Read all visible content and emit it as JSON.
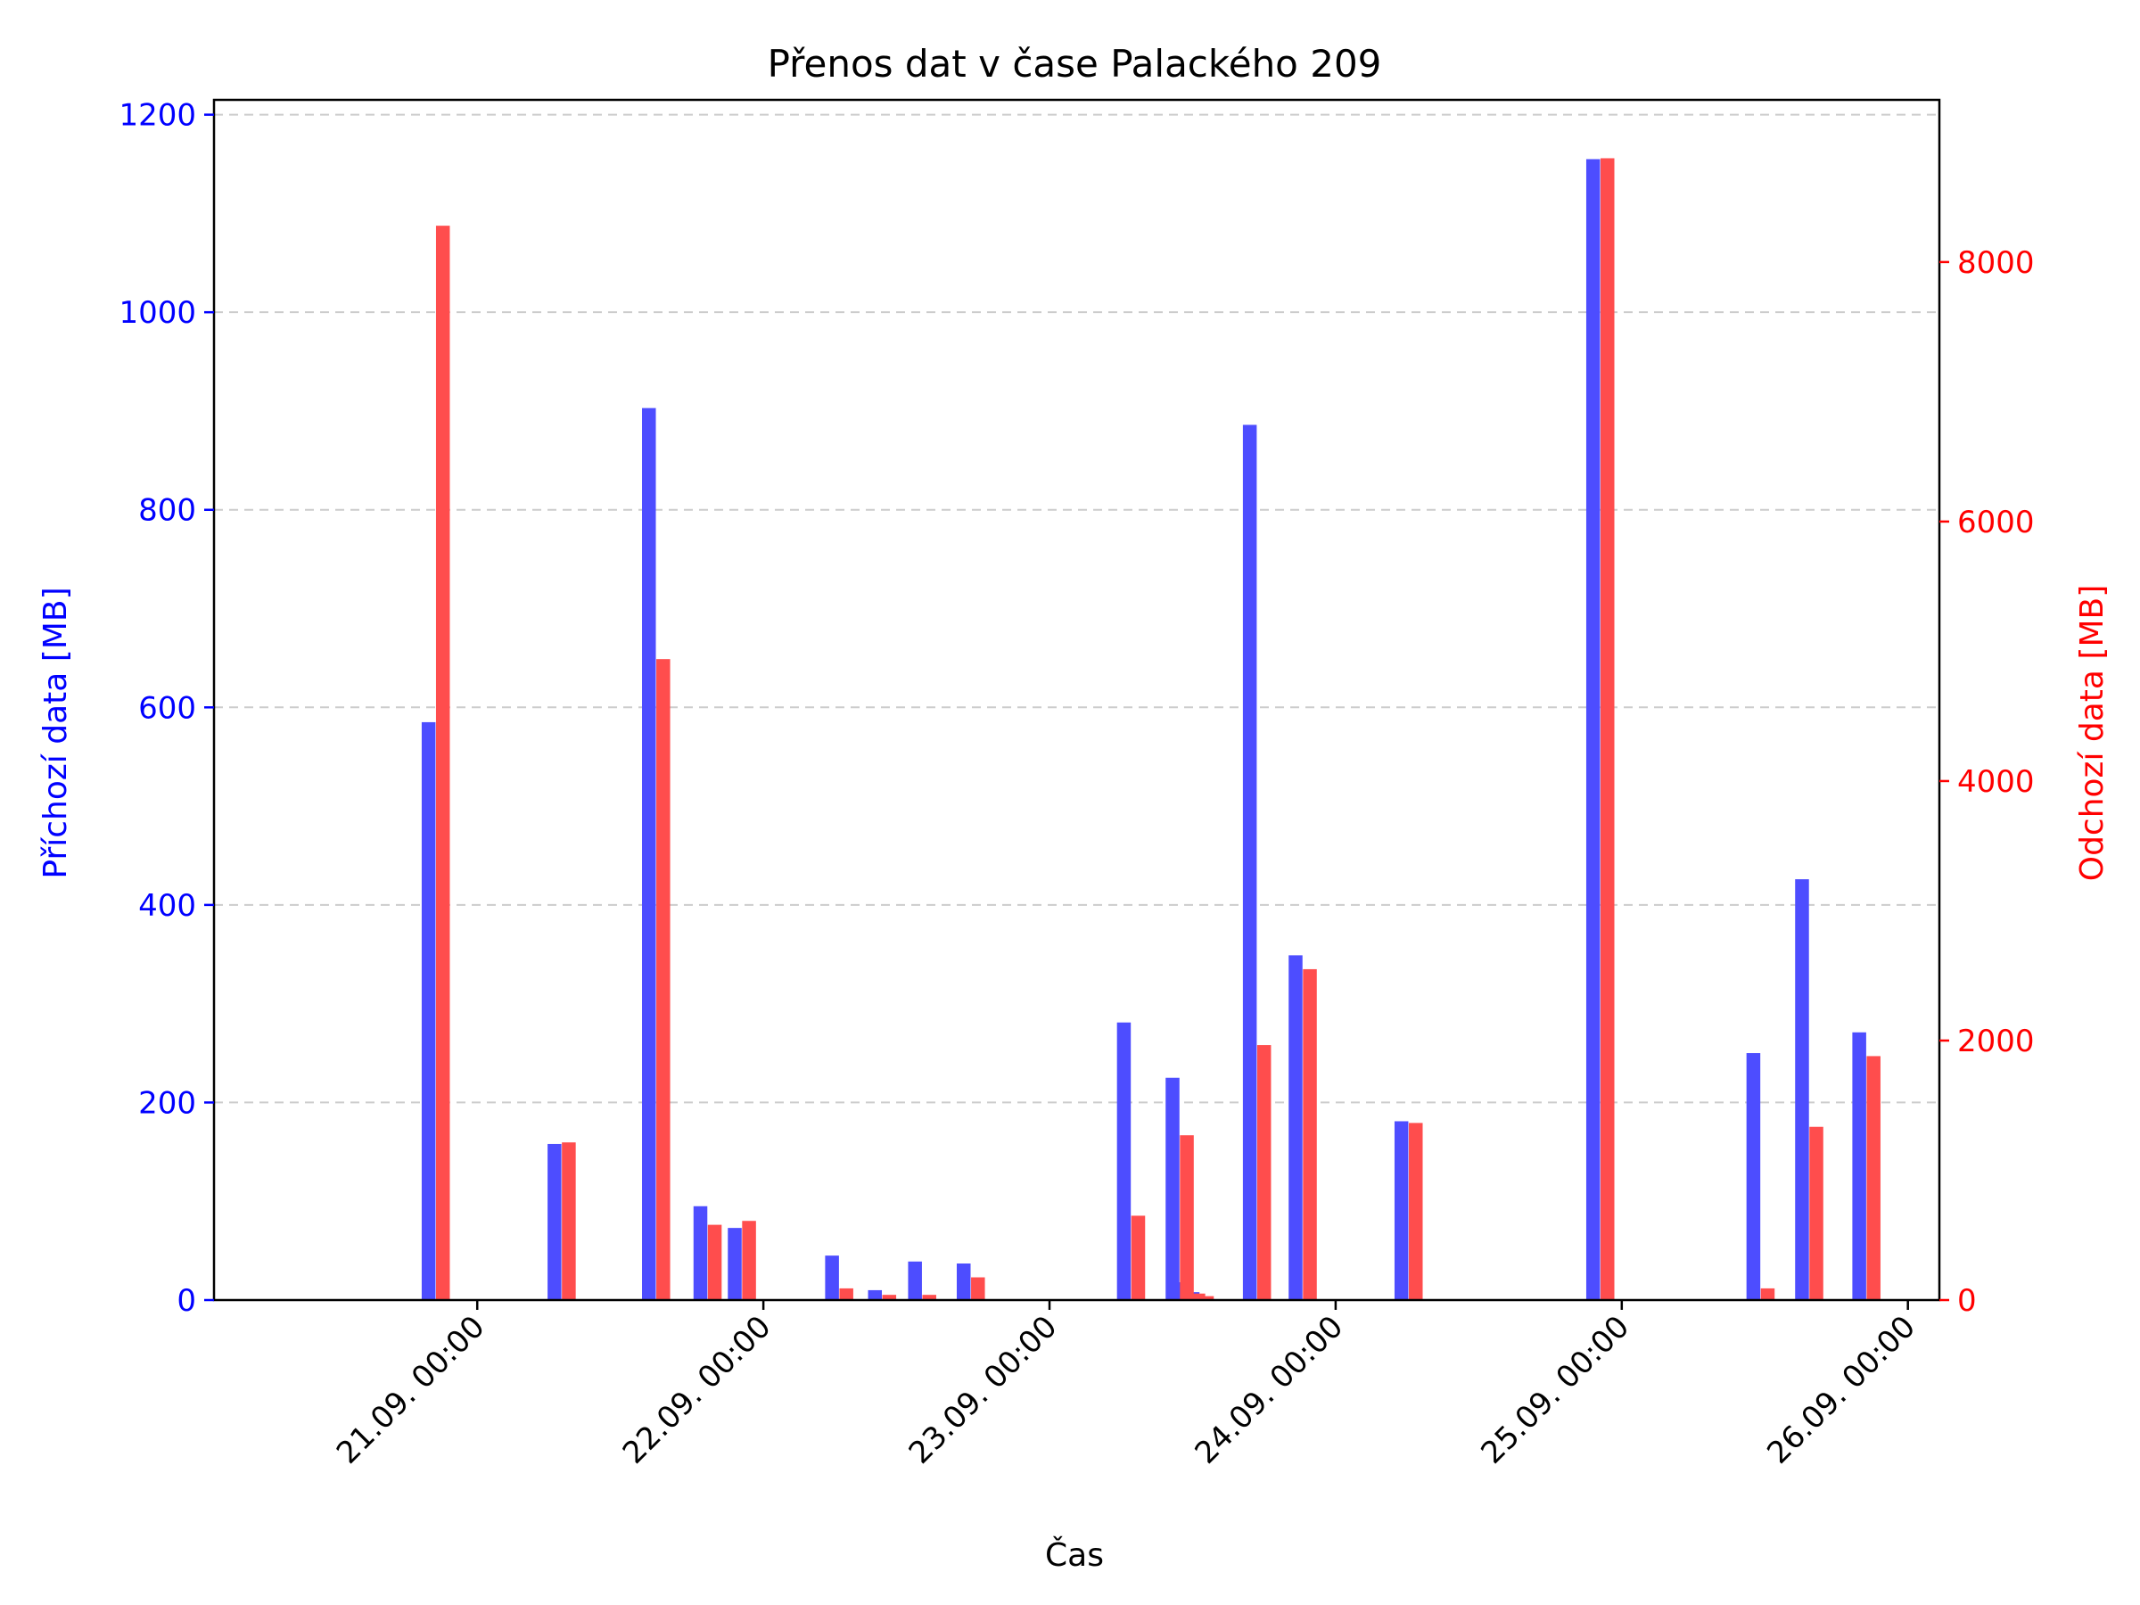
{
  "chart_data": {
    "type": "bar",
    "title": "Přenos dat v čase Palackého 209",
    "xlabel": "Čas",
    "ylabel_left": "Příchozí data [MB]",
    "ylabel_right": "Odchozí data [MB]",
    "x_ticks": [
      {
        "label": "21.09. 00:00",
        "day": 0
      },
      {
        "label": "22.09. 00:00",
        "day": 1
      },
      {
        "label": "23.09. 00:00",
        "day": 2
      },
      {
        "label": "24.09. 00:00",
        "day": 3
      },
      {
        "label": "25.09. 00:00",
        "day": 4
      },
      {
        "label": "26.09. 00:00",
        "day": 5
      }
    ],
    "xlim_days": [
      -0.92,
      5.11
    ],
    "ylim_left": [
      0,
      1215
    ],
    "ylim_right": [
      0,
      9250
    ],
    "yticks_left": [
      0,
      200,
      400,
      600,
      800,
      1000,
      1200
    ],
    "yticks_right": [
      0,
      2000,
      4000,
      6000,
      8000
    ],
    "grid": true,
    "colors": {
      "incoming": "#4d4dff",
      "outgoing": "#ff4d4d",
      "left_axis": "#0000ff",
      "right_axis": "#ff0000"
    },
    "series": [
      {
        "name": "Příchozí data",
        "axis": "left",
        "points": [
          {
            "day": -0.17,
            "value": 585
          },
          {
            "day": 0.27,
            "value": 158
          },
          {
            "day": 0.6,
            "value": 903
          },
          {
            "day": 0.78,
            "value": 95
          },
          {
            "day": 0.9,
            "value": 73
          },
          {
            "day": 1.24,
            "value": 45
          },
          {
            "day": 1.39,
            "value": 10
          },
          {
            "day": 1.53,
            "value": 39
          },
          {
            "day": 1.7,
            "value": 37
          },
          {
            "day": 2.26,
            "value": 281
          },
          {
            "day": 2.43,
            "value": 225
          },
          {
            "day": 2.47,
            "value": 18
          },
          {
            "day": 2.5,
            "value": 8
          },
          {
            "day": 2.7,
            "value": 886
          },
          {
            "day": 2.86,
            "value": 349
          },
          {
            "day": 3.23,
            "value": 181
          },
          {
            "day": 3.9,
            "value": 1155
          },
          {
            "day": 4.46,
            "value": 250
          },
          {
            "day": 4.63,
            "value": 426
          },
          {
            "day": 4.83,
            "value": 271
          }
        ]
      },
      {
        "name": "Odchozí data",
        "axis": "right",
        "points": [
          {
            "day": -0.12,
            "value": 8280
          },
          {
            "day": 0.32,
            "value": 1215
          },
          {
            "day": 0.65,
            "value": 4940
          },
          {
            "day": 0.83,
            "value": 580
          },
          {
            "day": 0.95,
            "value": 610
          },
          {
            "day": 1.29,
            "value": 90
          },
          {
            "day": 1.44,
            "value": 40
          },
          {
            "day": 1.58,
            "value": 40
          },
          {
            "day": 1.75,
            "value": 175
          },
          {
            "day": 2.31,
            "value": 650
          },
          {
            "day": 2.48,
            "value": 1270
          },
          {
            "day": 2.52,
            "value": 50
          },
          {
            "day": 2.55,
            "value": 30
          },
          {
            "day": 2.75,
            "value": 1965
          },
          {
            "day": 2.91,
            "value": 2550
          },
          {
            "day": 3.28,
            "value": 1365
          },
          {
            "day": 3.95,
            "value": 8800
          },
          {
            "day": 4.51,
            "value": 90
          },
          {
            "day": 4.68,
            "value": 1335
          },
          {
            "day": 4.88,
            "value": 1880
          }
        ]
      }
    ]
  }
}
